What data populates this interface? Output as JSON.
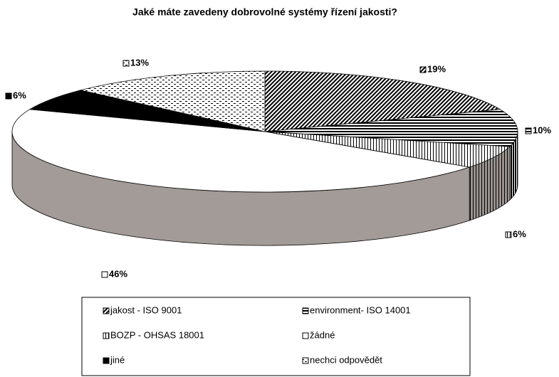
{
  "chart_data": {
    "type": "pie",
    "title": "Jaké máte zavedeny dobrovolné systémy řízení jakosti?",
    "categories": [
      "jakost - ISO 9001",
      "environment- ISO 14001",
      "BOZP - OHSAS 18001",
      "žádné",
      "jiné",
      "nechci odpovědět"
    ],
    "values": [
      19,
      10,
      6,
      46,
      6,
      13
    ],
    "value_labels": [
      "19%",
      "10%",
      "6%",
      "46%",
      "6%",
      "13%"
    ]
  }
}
